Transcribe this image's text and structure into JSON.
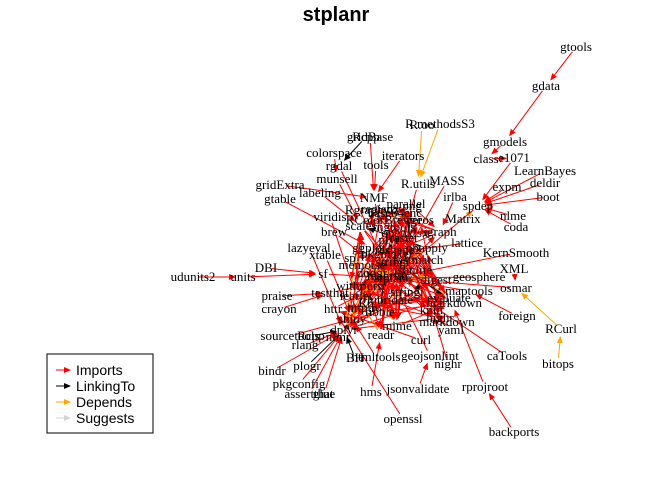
{
  "title": "stplanr",
  "legend": {
    "items": [
      {
        "label": "Imports",
        "color": "#ff0000"
      },
      {
        "label": "LinkingTo",
        "color": "#000000"
      },
      {
        "label": "Depends",
        "color": "#ffa500"
      },
      {
        "label": "Suggests",
        "color": "#d3d3d3"
      }
    ]
  },
  "nodes": [
    {
      "id": "gtools",
      "label": "gtools"
    },
    {
      "id": "gdata",
      "label": "gdata"
    },
    {
      "id": "gmodels",
      "label": "gmodels"
    },
    {
      "id": "R.methodsS3",
      "label": "R.methodsS3"
    },
    {
      "id": "R.oo",
      "label": "R.oo"
    },
    {
      "id": "class",
      "label": "class"
    },
    {
      "id": "e1071",
      "label": "e1071"
    },
    {
      "id": "LearnBayes",
      "label": "LearnBayes"
    },
    {
      "id": "gridBase",
      "label": "gridBase"
    },
    {
      "id": "Rcpp_top",
      "label": "Rcpp"
    },
    {
      "id": "colorspace",
      "label": "colorspace"
    },
    {
      "id": "rgdal",
      "label": "rgdal"
    },
    {
      "id": "tools",
      "label": "tools"
    },
    {
      "id": "iterators",
      "label": "iterators"
    },
    {
      "id": "MASS",
      "label": "MASS"
    },
    {
      "id": "R.utils",
      "label": "R.utils"
    },
    {
      "id": "expm",
      "label": "expm"
    },
    {
      "id": "deldir",
      "label": "deldir"
    },
    {
      "id": "boot",
      "label": "boot"
    },
    {
      "id": "munsell",
      "label": "munsell"
    },
    {
      "id": "labeling",
      "label": "labeling"
    },
    {
      "id": "gridExtra",
      "label": "gridExtra"
    },
    {
      "id": "gtable",
      "label": "gtable"
    },
    {
      "id": "NMF",
      "label": "NMF"
    },
    {
      "id": "parallel",
      "label": "parallel"
    },
    {
      "id": "irlba",
      "label": "irlba"
    },
    {
      "id": "spdep",
      "label": "spdep"
    },
    {
      "id": "Matrix",
      "label": "Matrix"
    },
    {
      "id": "nlme",
      "label": "nlme"
    },
    {
      "id": "coda",
      "label": "coda"
    },
    {
      "id": "viridis",
      "label": "viridis"
    },
    {
      "id": "brew",
      "label": "brew"
    },
    {
      "id": "lattice",
      "label": "lattice"
    },
    {
      "id": "lazyeval",
      "label": "lazyeval"
    },
    {
      "id": "KernSmooth",
      "label": "KernSmooth"
    },
    {
      "id": "xtable",
      "label": "xtable"
    },
    {
      "id": "sp",
      "label": "sp"
    },
    {
      "id": "geosphere",
      "label": "geosphere"
    },
    {
      "id": "XML",
      "label": "XML"
    },
    {
      "id": "DBI",
      "label": "DBI"
    },
    {
      "id": "udunits2",
      "label": "udunits2"
    },
    {
      "id": "units",
      "label": "units"
    },
    {
      "id": "sf",
      "label": "sf"
    },
    {
      "id": "maptools",
      "label": "maptools"
    },
    {
      "id": "osmar",
      "label": "osmar"
    },
    {
      "id": "praise",
      "label": "praise"
    },
    {
      "id": "testthat",
      "label": "testthat"
    },
    {
      "id": "crayon",
      "label": "crayon"
    },
    {
      "id": "httr",
      "label": "httr"
    },
    {
      "id": "foreign",
      "label": "foreign"
    },
    {
      "id": "RCurl",
      "label": "RCurl"
    },
    {
      "id": "sourcetools",
      "label": "sourcetools"
    },
    {
      "id": "Rcpp",
      "label": "Rcpp"
    },
    {
      "id": "markdown",
      "label": "markdown"
    },
    {
      "id": "yaml",
      "label": "yaml"
    },
    {
      "id": "curl",
      "label": "curl"
    },
    {
      "id": "rlang",
      "label": "rlang"
    },
    {
      "id": "BH",
      "label": "BH"
    },
    {
      "id": "htmltools",
      "label": "htmltools"
    },
    {
      "id": "geojsonlint",
      "label": "geojsonlint"
    },
    {
      "id": "caTools",
      "label": "caTools"
    },
    {
      "id": "nlmr",
      "label": "nlmr"
    },
    {
      "id": "bitops",
      "label": "bitops"
    },
    {
      "id": "plogr",
      "label": "plogr"
    },
    {
      "id": "nighr",
      "label": "nighr"
    },
    {
      "id": "bindr",
      "label": "bindr"
    },
    {
      "id": "hms",
      "label": "hms"
    },
    {
      "id": "jsonvalidate",
      "label": "jsonvalidate"
    },
    {
      "id": "rprojroot",
      "label": "rprojroot"
    },
    {
      "id": "pkgconfig",
      "label": "pkgconfig"
    },
    {
      "id": "assertthat",
      "label": "assertthat"
    },
    {
      "id": "glue",
      "label": "glue"
    },
    {
      "id": "openssl",
      "label": "openssl"
    },
    {
      "id": "backports",
      "label": "backports"
    },
    {
      "id": "ggplot2",
      "label": "ggplot2"
    },
    {
      "id": "dplyr",
      "label": "dplyr"
    },
    {
      "id": "raster",
      "label": "raster"
    },
    {
      "id": "stringr",
      "label": "stringr"
    },
    {
      "id": "stringi",
      "label": "stringi"
    },
    {
      "id": "magrittr",
      "label": "magrittr"
    },
    {
      "id": "R6",
      "label": "R6"
    },
    {
      "id": "tibble",
      "label": "tibble"
    },
    {
      "id": "mime",
      "label": "mime"
    },
    {
      "id": "jsonlite",
      "label": "jsonlite"
    },
    {
      "id": "digest",
      "label": "digest"
    },
    {
      "id": "knitr",
      "label": "knitr"
    },
    {
      "id": "rmarkdown",
      "label": "rmarkdown"
    },
    {
      "id": "evaluate",
      "label": "evaluate"
    },
    {
      "id": "highr",
      "label": "highr"
    },
    {
      "id": "shiny",
      "label": "shiny"
    },
    {
      "id": "scales",
      "label": "scales"
    },
    {
      "id": "plyr",
      "label": "plyr"
    },
    {
      "id": "reshape2",
      "label": "reshape2"
    },
    {
      "id": "igraph",
      "label": "igraph"
    },
    {
      "id": "rgeos",
      "label": "rgeos"
    },
    {
      "id": "purrr",
      "label": "purrr"
    },
    {
      "id": "openxlsx",
      "label": "openxlsx"
    },
    {
      "id": "lubridate",
      "label": "lubridate"
    },
    {
      "id": "readr",
      "label": "readr"
    },
    {
      "id": "pbapply",
      "label": "pbapply"
    },
    {
      "id": "leaflet",
      "label": "leaflet"
    },
    {
      "id": "png",
      "label": "png"
    },
    {
      "id": "base64enc",
      "label": "base64enc"
    },
    {
      "id": "dodgr",
      "label": "dodgr"
    },
    {
      "id": "RColorBrewer",
      "label": "RColorBrewer"
    },
    {
      "id": "httpuv",
      "label": "httpuv"
    },
    {
      "id": "withr",
      "label": "withr"
    },
    {
      "id": "memoise",
      "label": "memoise"
    },
    {
      "id": "Rgraphviz",
      "label": "Rgraphviz"
    },
    {
      "id": "fastmatch",
      "label": "fastmatch"
    },
    {
      "id": "rngtools",
      "label": "rngtools"
    },
    {
      "id": "registry",
      "label": "registry"
    },
    {
      "id": "pkgmaker",
      "label": "pkgmaker"
    },
    {
      "id": "stplanr",
      "label": "stplanr"
    }
  ],
  "edges": [
    {
      "from": "gtools",
      "to": "gdata",
      "type": "Imports"
    },
    {
      "from": "gdata",
      "to": "gmodels",
      "type": "Imports"
    },
    {
      "from": "gmodels",
      "to": "class",
      "type": "Imports"
    },
    {
      "from": "R.methodsS3",
      "to": "R.utils",
      "type": "Depends"
    },
    {
      "from": "R.oo",
      "to": "R.utils",
      "type": "Depends"
    },
    {
      "from": "class",
      "to": "e1071",
      "type": "Imports"
    },
    {
      "from": "e1071",
      "to": "spdep",
      "type": "Imports"
    },
    {
      "from": "LearnBayes",
      "to": "spdep",
      "type": "Imports"
    },
    {
      "from": "expm",
      "to": "spdep",
      "type": "Imports"
    },
    {
      "from": "deldir",
      "to": "spdep",
      "type": "Imports"
    },
    {
      "from": "boot",
      "to": "spdep",
      "type": "Imports"
    },
    {
      "from": "coda",
      "to": "spdep",
      "type": "Imports"
    },
    {
      "from": "nlme",
      "to": "spdep",
      "type": "Imports"
    },
    {
      "from": "Matrix",
      "to": "spdep",
      "type": "Depends"
    },
    {
      "from": "gridBase",
      "to": "NMF",
      "type": "Imports"
    },
    {
      "from": "Rcpp_top",
      "to": "rgdal",
      "type": "LinkingTo"
    },
    {
      "from": "colorspace",
      "to": "munsell",
      "type": "Imports"
    },
    {
      "from": "rgdal",
      "to": "stplanr",
      "type": "Imports"
    },
    {
      "from": "tools",
      "to": "NMF",
      "type": "Imports"
    },
    {
      "from": "iterators",
      "to": "NMF",
      "type": "Imports"
    },
    {
      "from": "MASS",
      "to": "stplanr",
      "type": "Imports"
    },
    {
      "from": "R.utils",
      "to": "stplanr",
      "type": "Imports"
    },
    {
      "from": "munsell",
      "to": "scales",
      "type": "Imports"
    },
    {
      "from": "labeling",
      "to": "scales",
      "type": "Imports"
    },
    {
      "from": "gridExtra",
      "to": "NMF",
      "type": "Imports"
    },
    {
      "from": "gtable",
      "to": "ggplot2",
      "type": "Imports"
    },
    {
      "from": "NMF",
      "to": "stplanr",
      "type": "Imports"
    },
    {
      "from": "parallel",
      "to": "stplanr",
      "type": "Imports"
    },
    {
      "from": "irlba",
      "to": "igraph",
      "type": "Imports"
    },
    {
      "from": "spdep",
      "to": "stplanr",
      "type": "Imports"
    },
    {
      "from": "viridis",
      "to": "leaflet",
      "type": "Imports"
    },
    {
      "from": "brew",
      "to": "stplanr",
      "type": "Imports"
    },
    {
      "from": "lattice",
      "to": "sp",
      "type": "Imports"
    },
    {
      "from": "lazyeval",
      "to": "dplyr",
      "type": "Imports"
    },
    {
      "from": "KernSmooth",
      "to": "stplanr",
      "type": "Imports"
    },
    {
      "from": "xtable",
      "to": "shiny",
      "type": "Imports"
    },
    {
      "from": "sp",
      "to": "stplanr",
      "type": "Depends"
    },
    {
      "from": "geosphere",
      "to": "stplanr",
      "type": "Imports"
    },
    {
      "from": "XML",
      "to": "osmar",
      "type": "Imports"
    },
    {
      "from": "DBI",
      "to": "sf",
      "type": "Imports"
    },
    {
      "from": "udunits2",
      "to": "units",
      "type": "Imports"
    },
    {
      "from": "units",
      "to": "sf",
      "type": "Imports"
    },
    {
      "from": "sf",
      "to": "stplanr",
      "type": "Imports"
    },
    {
      "from": "maptools",
      "to": "stplanr",
      "type": "Imports"
    },
    {
      "from": "osmar",
      "to": "stplanr",
      "type": "Imports"
    },
    {
      "from": "praise",
      "to": "testthat",
      "type": "Imports"
    },
    {
      "from": "testthat",
      "to": "stplanr",
      "type": "Imports"
    },
    {
      "from": "crayon",
      "to": "testthat",
      "type": "Imports"
    },
    {
      "from": "httr",
      "to": "stplanr",
      "type": "Imports"
    },
    {
      "from": "foreign",
      "to": "maptools",
      "type": "Imports"
    },
    {
      "from": "RCurl",
      "to": "osmar",
      "type": "Depends"
    },
    {
      "from": "bitops",
      "to": "RCurl",
      "type": "Depends"
    },
    {
      "from": "sourcetools",
      "to": "shiny",
      "type": "Imports"
    },
    {
      "from": "Rcpp",
      "to": "dplyr",
      "type": "LinkingTo"
    },
    {
      "from": "markdown",
      "to": "knitr",
      "type": "Imports"
    },
    {
      "from": "yaml",
      "to": "knitr",
      "type": "Imports"
    },
    {
      "from": "curl",
      "to": "httr",
      "type": "Imports"
    },
    {
      "from": "rlang",
      "to": "dplyr",
      "type": "Imports"
    },
    {
      "from": "BH",
      "to": "dplyr",
      "type": "LinkingTo"
    },
    {
      "from": "htmltools",
      "to": "shiny",
      "type": "Imports"
    },
    {
      "from": "geojsonlint",
      "to": "stplanr",
      "type": "Imports"
    },
    {
      "from": "caTools",
      "to": "stplanr",
      "type": "Imports"
    },
    {
      "from": "nlmr",
      "to": "stplanr",
      "type": "Imports"
    },
    {
      "from": "plogr",
      "to": "dplyr",
      "type": "LinkingTo"
    },
    {
      "from": "nighr",
      "to": "knitr",
      "type": "Imports"
    },
    {
      "from": "bindr",
      "to": "dplyr",
      "type": "Imports"
    },
    {
      "from": "hms",
      "to": "readr",
      "type": "Imports"
    },
    {
      "from": "jsonvalidate",
      "to": "geojsonlint",
      "type": "Imports"
    },
    {
      "from": "rprojroot",
      "to": "rmarkdown",
      "type": "Imports"
    },
    {
      "from": "pkgconfig",
      "to": "dplyr",
      "type": "Imports"
    },
    {
      "from": "assertthat",
      "to": "dplyr",
      "type": "Imports"
    },
    {
      "from": "glue",
      "to": "dplyr",
      "type": "Imports"
    },
    {
      "from": "openssl",
      "to": "httr",
      "type": "Imports"
    },
    {
      "from": "backports",
      "to": "rprojroot",
      "type": "Imports"
    }
  ]
}
